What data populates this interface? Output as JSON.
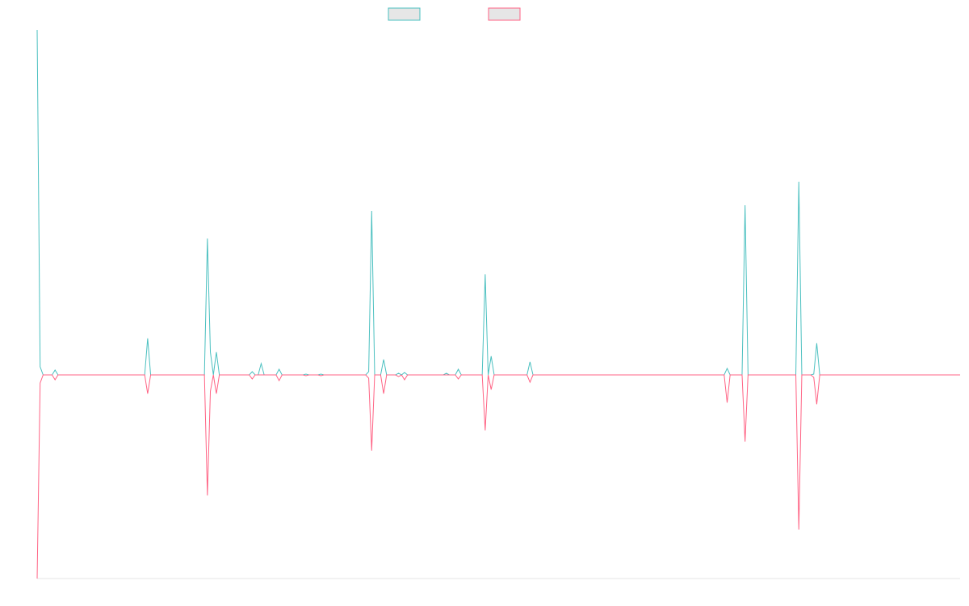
{
  "chart_data": {
    "type": "line",
    "title": "",
    "xlabel": "",
    "ylabel": "",
    "grid": false,
    "legend_placement": "top-center",
    "x_count": 310,
    "ylim": [
      -250,
      425
    ],
    "series": [
      {
        "color": "#4bc0c0",
        "fill": "#e6e6e6",
        "peaks": [
          [
            0,
            425
          ],
          [
            1,
            10
          ],
          [
            6,
            6
          ],
          [
            37,
            45
          ],
          [
            57,
            168
          ],
          [
            58,
            28
          ],
          [
            60,
            28
          ],
          [
            72,
            4
          ],
          [
            75,
            14
          ],
          [
            81,
            7
          ],
          [
            90,
            1
          ],
          [
            95,
            1
          ],
          [
            111,
            4
          ],
          [
            112,
            202
          ],
          [
            116,
            19
          ],
          [
            121,
            2
          ],
          [
            123,
            3
          ],
          [
            137,
            2
          ],
          [
            141,
            7
          ],
          [
            150,
            124
          ],
          [
            152,
            23
          ],
          [
            165,
            16
          ],
          [
            231,
            8
          ],
          [
            237,
            209
          ],
          [
            255,
            238
          ],
          [
            260,
            1
          ],
          [
            261,
            39
          ]
        ]
      },
      {
        "color": "#ff6384",
        "fill": "#e6e6e6",
        "peaks": [
          [
            0,
            -250
          ],
          [
            1,
            -10
          ],
          [
            6,
            -6
          ],
          [
            37,
            -23
          ],
          [
            57,
            -148
          ],
          [
            58,
            -20
          ],
          [
            60,
            -23
          ],
          [
            72,
            -5
          ],
          [
            81,
            -7
          ],
          [
            90,
            -1
          ],
          [
            95,
            -1
          ],
          [
            111,
            -4
          ],
          [
            112,
            -93
          ],
          [
            116,
            -23
          ],
          [
            121,
            -2
          ],
          [
            123,
            -6
          ],
          [
            141,
            -5
          ],
          [
            150,
            -68
          ],
          [
            152,
            -18
          ],
          [
            165,
            -9
          ],
          [
            231,
            -34
          ],
          [
            237,
            -82
          ],
          [
            255,
            -190
          ],
          [
            260,
            -3
          ],
          [
            261,
            -36
          ]
        ]
      }
    ]
  }
}
